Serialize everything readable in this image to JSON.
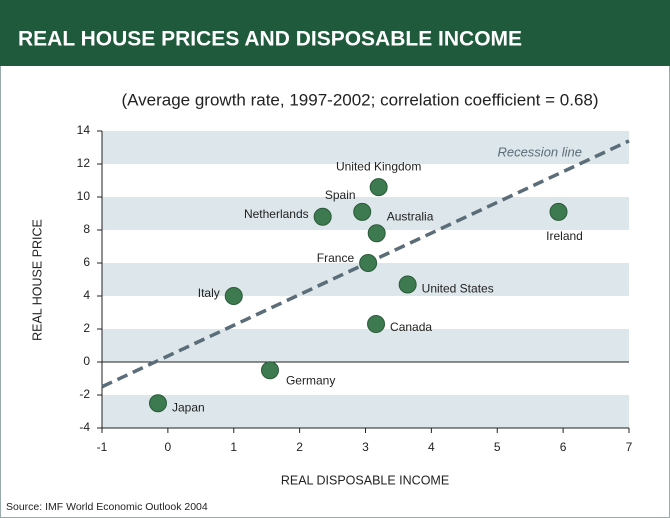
{
  "chart_data": {
    "type": "scatter",
    "title": "REAL HOUSE PRICES AND DISPOSABLE INCOME",
    "subtitle": "(Average growth rate, 1997-2002; correlation coefficient = 0.68)",
    "x_label": "REAL DISPOSABLE INCOME",
    "y_label": "REAL HOUSE PRICE",
    "source": "Source: IMF World Economic Outlook 2004",
    "labels": [
      "Japan",
      "Germany",
      "Italy",
      "Netherlands",
      "Spain",
      "United Kingdom",
      "Australia",
      "France",
      "United States",
      "Canada",
      "Ireland"
    ],
    "x": [
      -0.15,
      1.55,
      1.0,
      2.35,
      2.95,
      3.2,
      3.17,
      3.04,
      3.64,
      3.16,
      5.93
    ],
    "y": [
      -2.5,
      -0.5,
      4.0,
      8.8,
      9.1,
      10.6,
      7.8,
      6.0,
      4.7,
      2.3,
      9.1
    ],
    "color": "#3d7a4f",
    "recession_line": {
      "label": "Recession line",
      "x": [
        -1,
        7
      ],
      "y": [
        -1.5,
        13.4
      ],
      "color": "#5b6d78"
    },
    "xlim": [
      -1,
      7
    ],
    "xticks": [
      -1,
      0,
      1,
      2,
      3,
      4,
      5,
      6,
      7
    ],
    "ylim": [
      -4,
      14
    ],
    "yticks": [
      -4,
      -2,
      0,
      2,
      4,
      6,
      8,
      10,
      12,
      14
    ],
    "bands": true
  }
}
